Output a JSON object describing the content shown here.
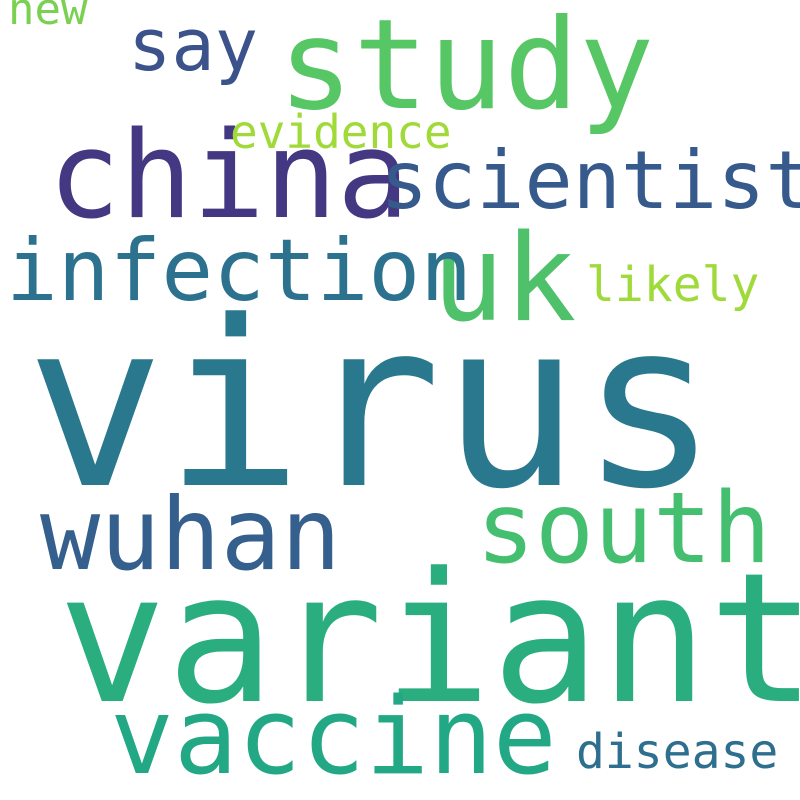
{
  "words": [
    {
      "text": "virus",
      "color": "#2a788e"
    },
    {
      "text": "variant",
      "color": "#2aae80"
    },
    {
      "text": "china",
      "color": "#453882"
    },
    {
      "text": "uk",
      "color": "#4fc16b"
    },
    {
      "text": "study",
      "color": "#57c665"
    },
    {
      "text": "vaccine",
      "color": "#22a884"
    },
    {
      "text": "wuhan",
      "color": "#355f8d"
    },
    {
      "text": "south",
      "color": "#44bf70"
    },
    {
      "text": "infection",
      "color": "#2c728e"
    },
    {
      "text": "scientist",
      "color": "#375a8c"
    },
    {
      "text": "say",
      "color": "#3b528b"
    },
    {
      "text": "disease",
      "color": "#2e6e8e"
    },
    {
      "text": "evidence",
      "color": "#a0da39"
    },
    {
      "text": "likely",
      "color": "#9fda3a"
    },
    {
      "text": "new",
      "color": "#7ad151"
    }
  ]
}
